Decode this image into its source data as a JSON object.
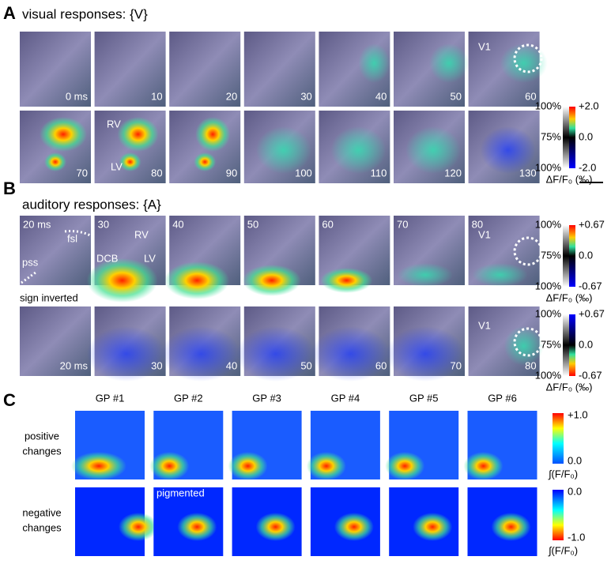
{
  "panel_a": {
    "label": "A",
    "title": "visual responses: {V}",
    "row1_frames": [
      "0 ms",
      "10",
      "20",
      "30",
      "40",
      "50",
      "60"
    ],
    "row2_frames": [
      "70",
      "80",
      "90",
      "100",
      "110",
      "120",
      "130"
    ],
    "annotations": {
      "v1": "V1",
      "rv": "RV",
      "lv": "LV"
    },
    "colorbar": {
      "left_labels": [
        "100%",
        "75%",
        "100%"
      ],
      "right_labels": [
        "+2.0",
        "0.0",
        "-2.0"
      ],
      "unit": "ΔF/F₀ (‰)"
    }
  },
  "panel_b": {
    "label": "B",
    "title": "auditory responses: {A}",
    "row1_frames": [
      "20 ms",
      "30",
      "40",
      "50",
      "60",
      "70",
      "80"
    ],
    "note": "sign inverted",
    "row2_frames": [
      "20 ms",
      "30",
      "40",
      "50",
      "60",
      "70",
      "80"
    ],
    "annotations": {
      "fsl": "fsl",
      "pss": "pss",
      "rv": "RV",
      "dcb": "DCB",
      "lv": "LV",
      "v1_top": "V1",
      "v1_bottom": "V1"
    },
    "colorbars": [
      {
        "left_labels": [
          "100%",
          "75%",
          "100%"
        ],
        "right_labels": [
          "+0.67",
          "0.0",
          "-0.67"
        ],
        "unit": "ΔF/F₀ (‰)"
      },
      {
        "left_labels": [
          "100%",
          "75%",
          "100%"
        ],
        "right_labels": [
          "+0.67",
          "0.0",
          "-0.67"
        ],
        "unit": "ΔF/F₀ (‰)"
      }
    ]
  },
  "panel_c": {
    "label": "C",
    "columns": [
      "GP #1",
      "GP #2",
      "GP #3",
      "GP #4",
      "GP #5",
      "GP #6"
    ],
    "rows": [
      [
        "positive",
        "changes"
      ],
      [
        "negative",
        "changes"
      ]
    ],
    "annotation": "pigmented",
    "colorbars": [
      {
        "top": "+1.0",
        "bottom": "0.0",
        "unit": "∫(F/F₀)"
      },
      {
        "top": "0.0",
        "bottom": "-1.0",
        "unit": "∫(F/F₀)"
      }
    ]
  }
}
